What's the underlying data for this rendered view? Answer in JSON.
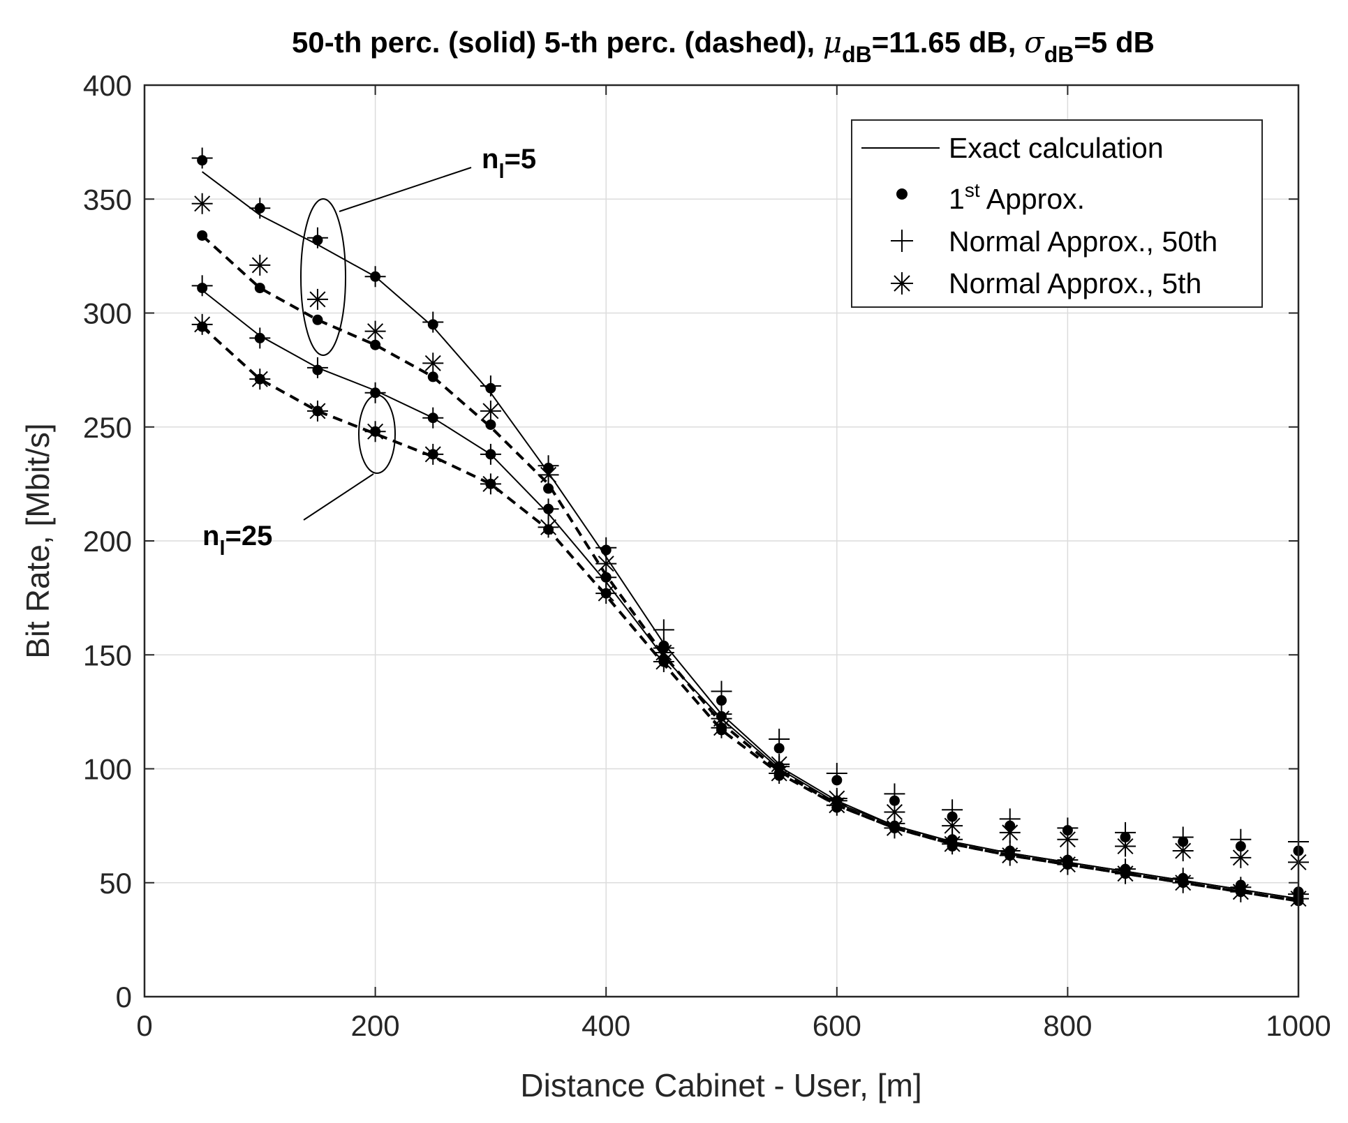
{
  "chart_data": {
    "type": "line",
    "title_parts": {
      "prefix": "50-th perc. (solid) 5-th perc. (dashed), ",
      "mu": "μ",
      "mu_sub": "dB",
      "mu_value": "=11.65 dB, ",
      "sigma": "σ",
      "sigma_sub": "dB",
      "sigma_value": "=5 dB"
    },
    "xlabel": "Distance Cabinet - User, [m]",
    "ylabel": "Bit Rate, [Mbit/s]",
    "xlim": [
      0,
      1000
    ],
    "ylim": [
      0,
      400
    ],
    "xticks": [
      0,
      200,
      400,
      600,
      800,
      1000
    ],
    "yticks": [
      0,
      50,
      100,
      150,
      200,
      250,
      300,
      350,
      400
    ],
    "grid": true,
    "legend_position": "top-right",
    "legend": [
      {
        "label": "Exact calculation",
        "marker": "line"
      },
      {
        "label_base": "1",
        "label_sup": "st",
        "label_rest": " Approx.",
        "marker": "dot"
      },
      {
        "label": "Normal Approx., 50th",
        "marker": "plus"
      },
      {
        "label": "Normal Approx., 5th",
        "marker": "star"
      }
    ],
    "annotations": [
      {
        "base": "n",
        "sub": "l",
        "rest": "=5"
      },
      {
        "base": "n",
        "sub": "l",
        "rest": "=25"
      }
    ],
    "x": [
      50,
      100,
      150,
      200,
      250,
      300,
      350,
      400,
      450,
      500,
      550,
      600,
      650,
      700,
      750,
      800,
      850,
      900,
      950,
      1000
    ],
    "series": [
      {
        "name": "n_l=5, 50th percentile",
        "style": "solid",
        "exact": [
          362,
          343,
          330,
          316,
          294,
          265,
          230,
          193,
          155,
          124,
          101,
          86,
          75,
          68,
          63,
          59,
          55,
          51,
          47,
          43
        ],
        "first_approx": [
          367,
          346,
          332,
          316,
          295,
          267,
          232,
          196,
          154,
          130,
          109,
          95,
          86,
          79,
          75,
          73,
          70,
          68,
          66,
          64
        ],
        "normal_approx": [
          368,
          346,
          333,
          316,
          296,
          268,
          233,
          197,
          161,
          134,
          113,
          98,
          89,
          82,
          78,
          74,
          72,
          70,
          69,
          68
        ]
      },
      {
        "name": "n_l=5, 5th percentile",
        "style": "dashed",
        "exact": [
          334,
          311,
          297,
          286,
          272,
          250,
          225,
          185,
          150,
          120,
          99,
          84,
          74,
          67,
          62,
          58,
          54,
          50,
          46,
          42
        ],
        "first_approx": [
          334,
          311,
          297,
          286,
          272,
          251,
          223,
          184,
          148,
          118,
          98,
          83,
          74,
          67,
          62,
          59,
          55,
          51,
          47,
          44
        ],
        "normal_approx": [
          348,
          321,
          306,
          292,
          278,
          257,
          229,
          190,
          151,
          122,
          102,
          87,
          81,
          75,
          72,
          69,
          66,
          64,
          61,
          59
        ]
      },
      {
        "name": "n_l=25, 50th percentile",
        "style": "solid",
        "exact": [
          310,
          290,
          276,
          266,
          254,
          238,
          212,
          182,
          149,
          122,
          100,
          85,
          75,
          68,
          63,
          59,
          55,
          51,
          47,
          43
        ],
        "first_approx": [
          311,
          289,
          275,
          265,
          254,
          238,
          214,
          184,
          153,
          123,
          101,
          86,
          75,
          69,
          64,
          60,
          56,
          52,
          49,
          46
        ],
        "normal_approx": [
          312,
          289,
          276,
          265,
          254,
          238,
          214,
          184,
          153,
          124,
          101,
          86,
          76,
          69,
          64,
          60,
          56,
          52,
          48,
          45
        ]
      },
      {
        "name": "n_l=25, 5th percentile",
        "style": "dashed",
        "exact": [
          294,
          271,
          257,
          247,
          237,
          225,
          205,
          176,
          146,
          117,
          98,
          84,
          74,
          67,
          62,
          58,
          54,
          50,
          46,
          42
        ],
        "first_approx": [
          294,
          271,
          257,
          248,
          238,
          225,
          205,
          177,
          147,
          117,
          97,
          83,
          74,
          66,
          62,
          58,
          54,
          50,
          46,
          42
        ],
        "normal_approx": [
          295,
          271,
          257,
          248,
          238,
          225,
          206,
          177,
          147,
          118,
          98,
          84,
          74,
          67,
          62,
          58,
          54,
          50,
          46,
          43
        ]
      }
    ]
  }
}
